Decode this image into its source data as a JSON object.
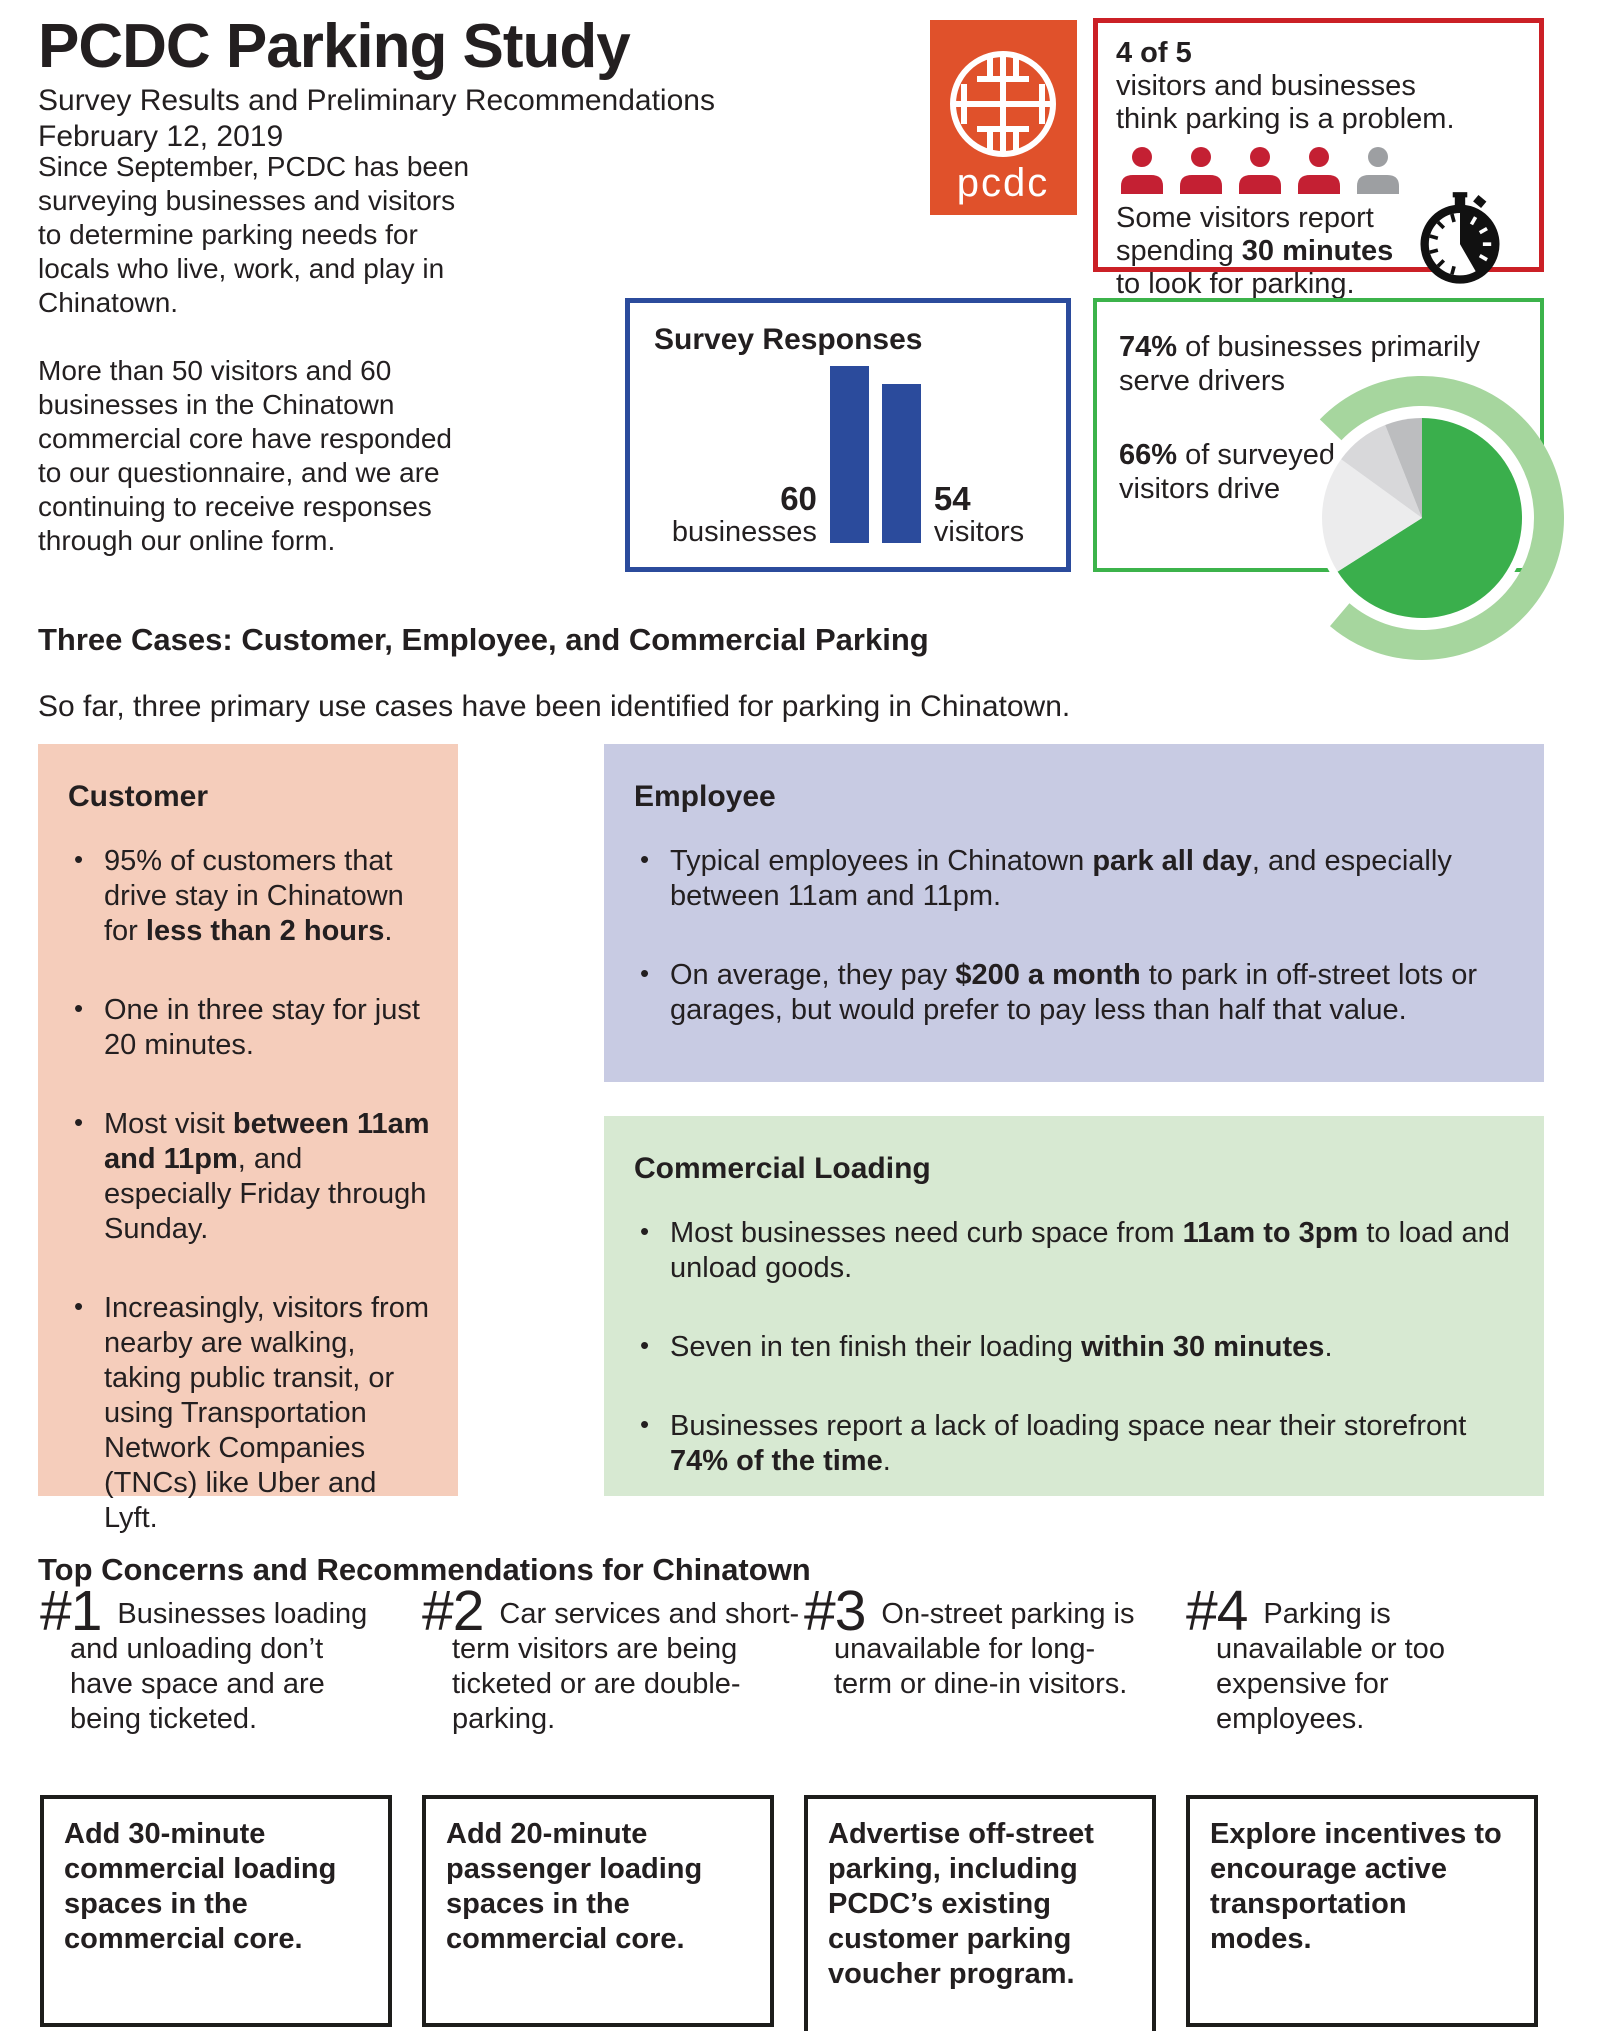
{
  "page": {
    "title": "PCDC Parking Study",
    "subtitle": "Survey Results and Preliminary Recommendations",
    "date": "February 12, 2019",
    "intro_p1": "Since September, PCDC has been surveying businesses and visitors to determine parking needs for locals who live, work, and play in Chinatown.",
    "intro_p2": "More than 50 visitors and 60 businesses in the Chinatown commercial core have responded to our questionnaire, and we are continuing to receive responses through our online form.",
    "section_heading_cases": "Three Cases: Customer, Employee, and Commercial Parking",
    "cases_lead": "So far, three primary use cases have been identified for parking in Chinatown.",
    "section_heading_concerns": "Top Concerns and Recommendations for Chinatown"
  },
  "logo": {
    "wordmark": "pcdc",
    "bg_color": "#e0512b"
  },
  "problem_box": {
    "border_color": "#cb2026",
    "stat": [
      {
        "t": "4 of 5",
        "b": true
      }
    ],
    "stat_caption": [
      {
        "t": "visitors and businesses think parking is a problem."
      }
    ],
    "people": {
      "filled": 4,
      "total": 5,
      "filled_color": "#c42033",
      "empty_color": "#9d9fa2"
    },
    "search_time": [
      {
        "t": "Some visitors report spending "
      },
      {
        "t": "30 minutes",
        "b": true
      },
      {
        "t": " to look for parking."
      }
    ]
  },
  "survey_box": {
    "border_color": "#2b4b9c",
    "title": "Survey Responses",
    "chart": {
      "type": "bar",
      "categories": [
        "businesses",
        "visitors"
      ],
      "values": [
        60,
        54
      ],
      "bar_color": "#2b4b9c",
      "labels": [
        {
          "value": "60",
          "category": "businesses"
        },
        {
          "value": "54",
          "category": "visitors"
        }
      ]
    }
  },
  "drivers_box": {
    "border_color": "#3cb34b",
    "stat1": [
      {
        "t": "74%",
        "b": true
      },
      {
        "t": " of businesses primarily serve drivers"
      }
    ],
    "stat2": [
      {
        "t": "66%",
        "b": true
      },
      {
        "t": " of surveyed visitors drive"
      }
    ],
    "pie": {
      "type": "pie",
      "slices": [
        {
          "label": "surveyed visitors who drive",
          "value": 66,
          "color": "#3aaf4c"
        },
        {
          "label": "other",
          "value": 19,
          "color": "#ececed"
        },
        {
          "label": "other",
          "value": 9,
          "color": "#d8d8da"
        },
        {
          "label": "other",
          "value": 6,
          "color": "#bcbdbf"
        }
      ],
      "ring": {
        "label": "businesses primarily serving drivers",
        "value": 74,
        "color": "#a6d69e"
      }
    }
  },
  "customer_box": {
    "bg_color": "#f5cdbb",
    "title": "Customer",
    "bullets": [
      [
        {
          "t": "95% of customers that drive stay in Chinatown for "
        },
        {
          "t": "less than 2 hours",
          "b": true
        },
        {
          "t": "."
        }
      ],
      [
        {
          "t": "One in three stay for just 20 minutes."
        }
      ],
      [
        {
          "t": "Most visit "
        },
        {
          "t": "between 11am and 11pm",
          "b": true
        },
        {
          "t": ", and especially Friday through Sunday."
        }
      ],
      [
        {
          "t": "Increasingly, visitors from nearby are walking, taking public transit, or using Transportation Network Companies (TNCs) like Uber and Lyft."
        }
      ]
    ]
  },
  "employee_box": {
    "bg_color": "#c8cbe3",
    "title": "Employee",
    "bullets": [
      [
        {
          "t": "Typical employees in Chinatown "
        },
        {
          "t": "park all day",
          "b": true
        },
        {
          "t": ", and especially between 11am and 11pm."
        }
      ],
      [
        {
          "t": "On average, they pay "
        },
        {
          "t": "$200 a month",
          "b": true
        },
        {
          "t": " to park in off-street lots or garages, but would prefer to pay less than half that value."
        }
      ]
    ]
  },
  "loading_box": {
    "bg_color": "#d7e9d2",
    "title": "Commercial Loading",
    "bullets": [
      [
        {
          "t": "Most businesses need curb space from "
        },
        {
          "t": "11am to 3pm",
          "b": true
        },
        {
          "t": " to load and unload goods."
        }
      ],
      [
        {
          "t": "Seven in ten finish their loading "
        },
        {
          "t": "within 30 minutes",
          "b": true
        },
        {
          "t": "."
        }
      ],
      [
        {
          "t": "Businesses report a lack of loading space near their storefront "
        },
        {
          "t": "74% of the time",
          "b": true
        },
        {
          "t": "."
        }
      ]
    ]
  },
  "concerns": [
    {
      "number": "#1",
      "text": "Businesses loading and unloading don’t have space and are being ticketed.",
      "recommendation": "Add 30-minute commercial loading spaces in the commercial core."
    },
    {
      "number": "#2",
      "text": "Car services and short-term visitors are being ticketed or are double-parking.",
      "recommendation": "Add 20-minute passenger loading spaces in the commercial core."
    },
    {
      "number": "#3",
      "text": "On-street parking is unavailable for long-term or dine-in visitors.",
      "recommendation": "Advertise off-street parking, including PCDC’s existing customer parking voucher program."
    },
    {
      "number": "#4",
      "text": "Parking is unavailable or too expensive for employees.",
      "recommendation": "Explore incentives to encourage active transportation modes."
    }
  ],
  "chart_data": [
    {
      "type": "bar",
      "title": "Survey Responses",
      "categories": [
        "businesses",
        "visitors"
      ],
      "values": [
        60,
        54
      ],
      "xlabel": "",
      "ylabel": "",
      "ylim": [
        0,
        60
      ],
      "legend": "none",
      "grid": false
    },
    {
      "type": "pie",
      "title": "Surveyed visitors who drive",
      "labels": [
        "drive",
        "other",
        "other",
        "other"
      ],
      "values": [
        66,
        19,
        9,
        6
      ],
      "annotations": [
        "74% of businesses primarily serve drivers",
        "66% of surveyed visitors drive",
        "outer ring arc = 74%"
      ]
    }
  ]
}
